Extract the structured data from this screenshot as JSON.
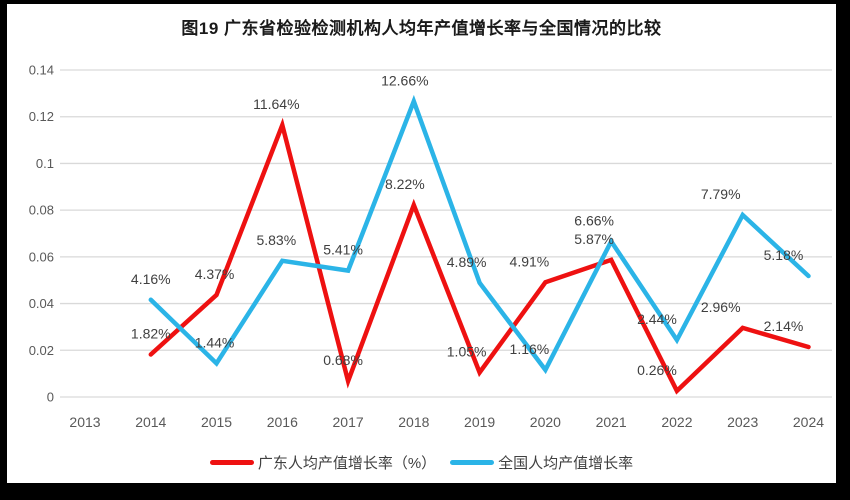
{
  "title": "图19  广东省检验检测机构人均年产值增长率与全国情况的比较",
  "frame": {
    "background_color": "#000000",
    "panel_color": "#ffffff"
  },
  "chart_data": {
    "type": "line",
    "title": "图19  广东省检验检测机构人均年产值增长率与全国情况的比较",
    "categories": [
      "2013",
      "2014",
      "2015",
      "2016",
      "2017",
      "2018",
      "2019",
      "2020",
      "2021",
      "2022",
      "2023",
      "2024"
    ],
    "series": [
      {
        "name": "广东人均产值增长率（%）",
        "color": "#EE1111",
        "start_category": "2014",
        "values_unit": "percent",
        "values": [
          1.82,
          4.37,
          11.64,
          0.68,
          8.22,
          1.05,
          4.91,
          5.87,
          0.26,
          2.96,
          2.14
        ],
        "labels": [
          "1.82%",
          "4.37%",
          "11.64%",
          "0.68%",
          "8.22%",
          "1.05%",
          "4.91%",
          "5.87%",
          "0.26%",
          "2.96%",
          "2.14%"
        ]
      },
      {
        "name": "全国人均产值增长率",
        "color": "#2BB4E7",
        "start_category": "2014",
        "values_unit": "percent",
        "values": [
          4.16,
          1.44,
          5.83,
          5.41,
          12.66,
          4.89,
          1.16,
          6.66,
          2.44,
          7.79,
          5.18
        ],
        "labels": [
          "4.16%",
          "1.44%",
          "5.83%",
          "5.41%",
          "12.66%",
          "4.89%",
          "1.16%",
          "6.66%",
          "2.44%",
          "7.79%",
          "5.18%"
        ]
      }
    ],
    "y_axis": {
      "min": 0,
      "max": 0.14,
      "ticks": [
        "0",
        "0.02",
        "0.04",
        "0.06",
        "0.08",
        "0.1",
        "0.12",
        "0.14"
      ]
    },
    "x_axis": {
      "ticks": [
        "2013",
        "2014",
        "2015",
        "2016",
        "2017",
        "2018",
        "2019",
        "2020",
        "2021",
        "2022",
        "2023",
        "2024"
      ]
    },
    "grid": true,
    "gridline_color": "#D9D9D9",
    "tick_label_color": "#595959",
    "data_label_color": "#404040",
    "data_labels": true,
    "legend_position": "bottom"
  },
  "legend": {
    "items": [
      {
        "label": "广东人均产值增长率（%）",
        "color": "#EE1111"
      },
      {
        "label": "全国人均产值增长率",
        "color": "#2BB4E7"
      }
    ]
  }
}
